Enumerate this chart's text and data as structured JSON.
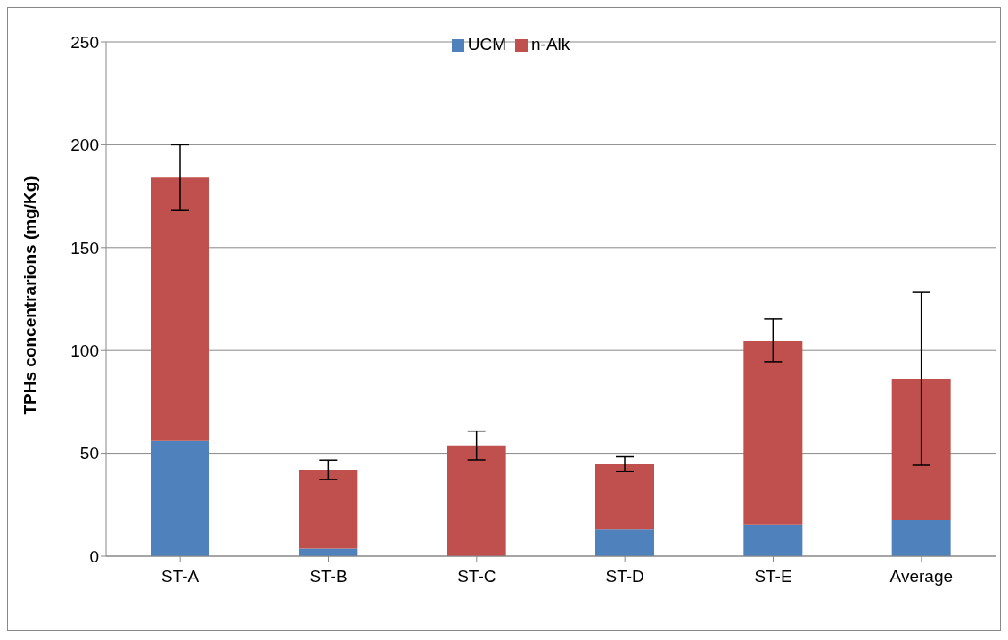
{
  "chart_data": {
    "type": "bar",
    "ylabel": "TPHs concentrarions (mg/Kg)",
    "categories": [
      "ST-A",
      "ST-B",
      "ST-C",
      "ST-D",
      "ST-E",
      "Average"
    ],
    "stacked": true,
    "series": [
      {
        "name": "UCM",
        "color": "#4f81bd",
        "values": [
          56,
          3.7,
          null,
          12.9,
          15.3,
          17.8
        ]
      },
      {
        "name": "n-Alk",
        "color": "#c0504d",
        "values": [
          128,
          38.3,
          53.8,
          31.9,
          89.6,
          68.4
        ],
        "errors": [
          16,
          4.7,
          7,
          3.5,
          10.4,
          42
        ]
      }
    ],
    "ylim": [
      0,
      250
    ],
    "yticks": [
      0,
      50,
      100,
      150,
      200,
      250
    ],
    "grid": "y",
    "legend": "top"
  }
}
